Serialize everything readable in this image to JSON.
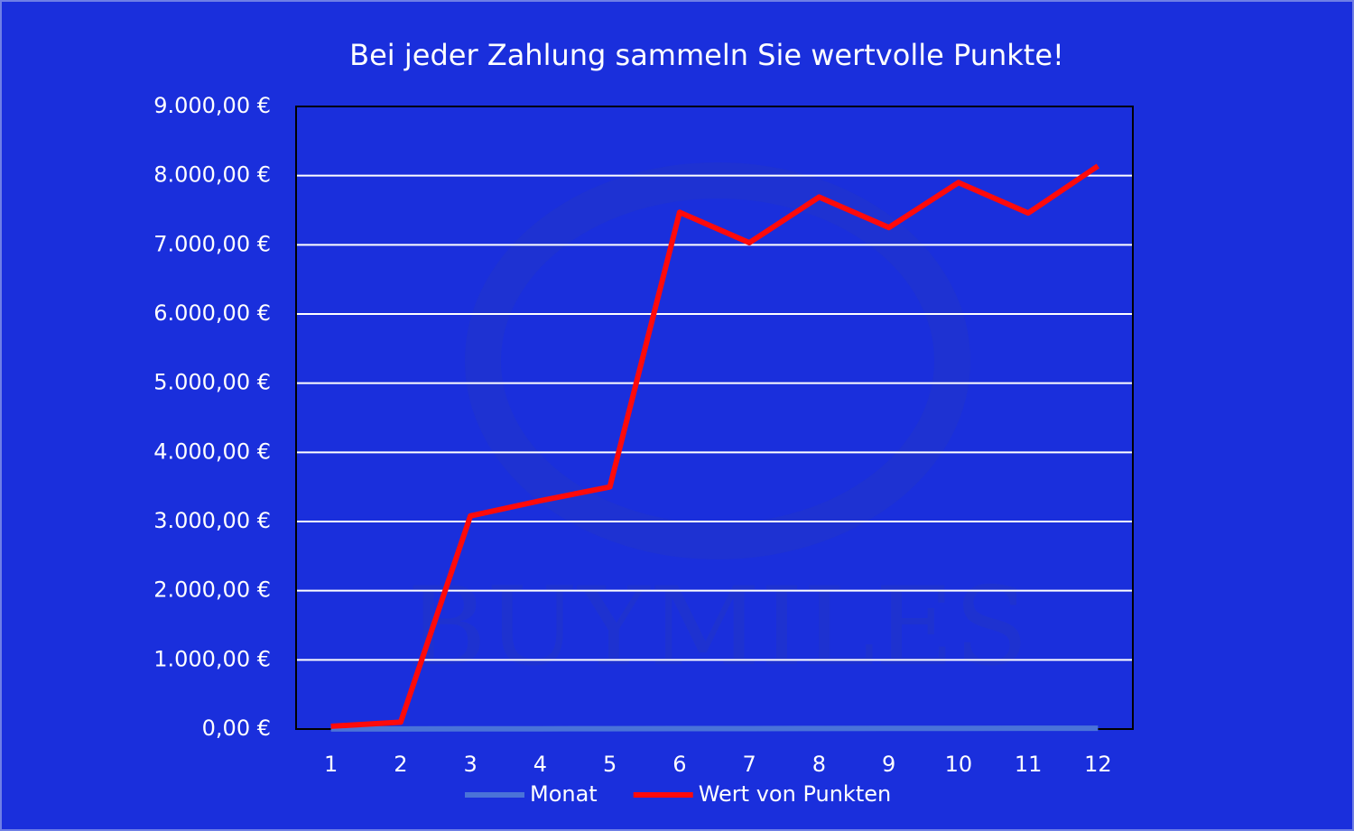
{
  "chart_data": {
    "type": "line",
    "title": "Bei jeder Zahlung sammeln Sie wertvolle Punkte!",
    "watermark": "BUYMILES",
    "categories": [
      "1",
      "2",
      "3",
      "4",
      "5",
      "6",
      "7",
      "8",
      "9",
      "10",
      "11",
      "12"
    ],
    "series": [
      {
        "name": "Monat",
        "color": "#4a73d8",
        "values": [
          1,
          2,
          3,
          4,
          5,
          6,
          7,
          8,
          9,
          10,
          11,
          12
        ]
      },
      {
        "name": "Wert von Punkten",
        "color": "#ff0a0a",
        "values": [
          40,
          100,
          3080,
          3300,
          3500,
          7470,
          7030,
          7690,
          7250,
          7900,
          7460,
          8140
        ]
      }
    ],
    "ylim": [
      0,
      9000
    ],
    "yticks": [
      {
        "value": 0,
        "label": "0,00 €"
      },
      {
        "value": 1000,
        "label": "1.000,00 €"
      },
      {
        "value": 2000,
        "label": "2.000,00 €"
      },
      {
        "value": 3000,
        "label": "3.000,00 €"
      },
      {
        "value": 4000,
        "label": "4.000,00 €"
      },
      {
        "value": 5000,
        "label": "5.000,00 €"
      },
      {
        "value": 6000,
        "label": "6.000,00 €"
      },
      {
        "value": 7000,
        "label": "7.000,00 €"
      },
      {
        "value": 8000,
        "label": "8.000,00 €"
      },
      {
        "value": 9000,
        "label": "9.000,00 €"
      }
    ],
    "grid": true,
    "legend": "bottom"
  }
}
